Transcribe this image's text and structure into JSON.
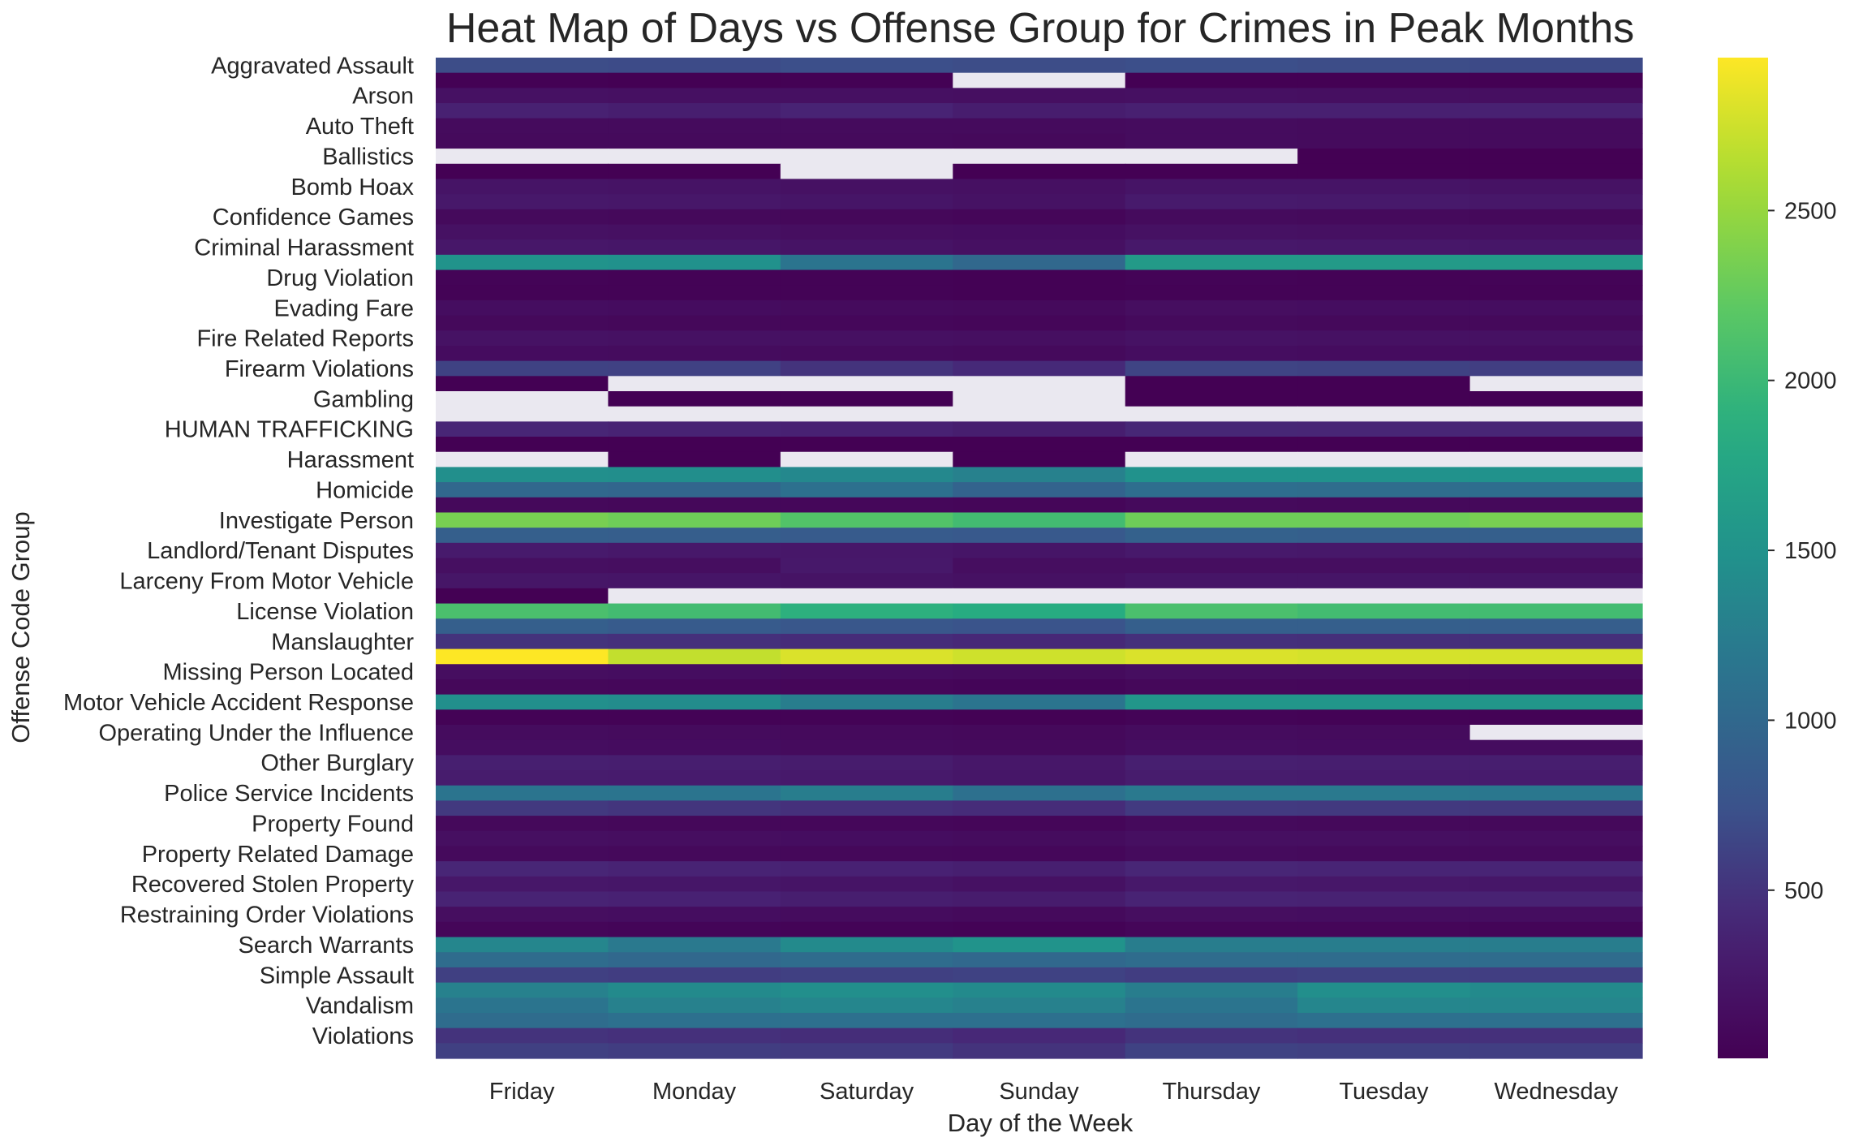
{
  "chart_data": {
    "type": "heatmap",
    "title": "Heat Map of Days vs Offense Group for Crimes in Peak Months",
    "xlabel": "Day of the Week",
    "ylabel": "Offense Code Group",
    "x_categories": [
      "Friday",
      "Monday",
      "Saturday",
      "Sunday",
      "Thursday",
      "Tuesday",
      "Wednesday"
    ],
    "y_labels": [
      "Aggravated Assault",
      "Arson",
      "Auto Theft",
      "Ballistics",
      "Bomb Hoax",
      "Confidence Games",
      "Criminal Harassment",
      "Drug Violation",
      "Evading Fare",
      "Fire Related Reports",
      "Firearm Violations",
      "Gambling",
      "HUMAN TRAFFICKING",
      "Harassment",
      "Homicide",
      "Investigate Person",
      "Landlord/Tenant Disputes",
      "Larceny From Motor Vehicle",
      "License Violation",
      "Manslaughter",
      "Missing Person Located",
      "Motor Vehicle Accident Response",
      "Operating Under the Influence",
      "Other Burglary",
      "Police Service Incidents",
      "Property Found",
      "Property Related Damage",
      "Recovered Stolen Property",
      "Restraining Order Violations",
      "Search Warrants",
      "Simple Assault",
      "Vandalism",
      "Violations"
    ],
    "row_count": 66,
    "values": [
      [
        700,
        690,
        720,
        700,
        720,
        700,
        680
      ],
      [
        15,
        10,
        12,
        null,
        10,
        8,
        9
      ],
      [
        180,
        170,
        170,
        160,
        170,
        160,
        160
      ],
      [
        350,
        320,
        380,
        310,
        340,
        340,
        350
      ],
      [
        110,
        110,
        110,
        110,
        120,
        110,
        110
      ],
      [
        100,
        100,
        100,
        90,
        120,
        110,
        110
      ],
      [
        null,
        null,
        null,
        null,
        null,
        5,
        5
      ],
      [
        10,
        8,
        null,
        5,
        5,
        5,
        6
      ],
      [
        210,
        200,
        180,
        170,
        210,
        210,
        190
      ],
      [
        260,
        250,
        220,
        190,
        280,
        270,
        250
      ],
      [
        100,
        90,
        80,
        60,
        110,
        100,
        90
      ],
      [
        180,
        170,
        150,
        140,
        180,
        170,
        170
      ],
      [
        250,
        240,
        200,
        170,
        260,
        250,
        240
      ],
      [
        1500,
        1480,
        1150,
        1000,
        1600,
        1600,
        1600
      ],
      [
        40,
        30,
        30,
        20,
        40,
        30,
        40
      ],
      [
        30,
        25,
        25,
        20,
        30,
        30,
        30
      ],
      [
        140,
        130,
        110,
        100,
        150,
        140,
        140
      ],
      [
        90,
        80,
        70,
        60,
        100,
        90,
        90
      ],
      [
        190,
        180,
        170,
        160,
        190,
        180,
        180
      ],
      [
        130,
        120,
        110,
        100,
        140,
        130,
        130
      ],
      [
        620,
        610,
        500,
        430,
        630,
        620,
        590
      ],
      [
        10,
        null,
        null,
        null,
        10,
        8,
        null
      ],
      [
        null,
        5,
        5,
        null,
        3,
        4,
        5
      ],
      [
        null,
        null,
        null,
        null,
        null,
        null,
        null
      ],
      [
        400,
        380,
        360,
        320,
        410,
        400,
        400
      ],
      [
        5,
        5,
        4,
        3,
        5,
        5,
        4
      ],
      [
        null,
        5,
        null,
        5,
        null,
        null,
        null
      ],
      [
        1450,
        1440,
        1380,
        1300,
        1490,
        1490,
        1490
      ],
      [
        1000,
        980,
        1100,
        950,
        1080,
        1060,
        1070
      ],
      [
        90,
        80,
        70,
        60,
        100,
        90,
        90
      ],
      [
        2350,
        2300,
        2150,
        2050,
        2300,
        2300,
        2350
      ],
      [
        900,
        880,
        850,
        820,
        920,
        900,
        900
      ],
      [
        280,
        260,
        250,
        220,
        270,
        260,
        260
      ],
      [
        160,
        150,
        260,
        150,
        150,
        150,
        150
      ],
      [
        230,
        220,
        200,
        180,
        220,
        220,
        220
      ],
      [
        5,
        null,
        null,
        null,
        null,
        null,
        null
      ],
      [
        2100,
        2050,
        1900,
        1850,
        2100,
        2050,
        2050
      ],
      [
        900,
        850,
        800,
        760,
        900,
        900,
        880
      ],
      [
        500,
        480,
        450,
        420,
        480,
        470,
        470
      ],
      [
        2950,
        2700,
        2800,
        2750,
        2800,
        2780,
        2780
      ],
      [
        150,
        140,
        130,
        110,
        150,
        150,
        140
      ],
      [
        80,
        70,
        60,
        50,
        80,
        70,
        80
      ],
      [
        1450,
        1420,
        1250,
        1150,
        1550,
        1550,
        1550
      ],
      [
        30,
        30,
        25,
        20,
        35,
        30,
        30
      ],
      [
        120,
        110,
        100,
        90,
        120,
        110,
        null
      ],
      [
        140,
        130,
        110,
        100,
        140,
        130,
        130
      ],
      [
        330,
        320,
        300,
        250,
        330,
        320,
        320
      ],
      [
        300,
        290,
        270,
        240,
        300,
        290,
        290
      ],
      [
        1150,
        1150,
        1250,
        1100,
        1200,
        1200,
        1180
      ],
      [
        550,
        520,
        480,
        450,
        560,
        550,
        540
      ],
      [
        90,
        80,
        70,
        60,
        100,
        90,
        90
      ],
      [
        160,
        150,
        140,
        120,
        160,
        160,
        150
      ],
      [
        100,
        90,
        80,
        70,
        110,
        100,
        100
      ],
      [
        400,
        380,
        360,
        330,
        400,
        390,
        390
      ],
      [
        250,
        240,
        210,
        180,
        260,
        250,
        240
      ],
      [
        380,
        360,
        320,
        300,
        380,
        370,
        370
      ],
      [
        150,
        140,
        120,
        100,
        150,
        140,
        140
      ],
      [
        60,
        50,
        40,
        30,
        60,
        60,
        50
      ],
      [
        1350,
        1200,
        1400,
        1500,
        1250,
        1250,
        1250
      ],
      [
        1050,
        1000,
        1050,
        1000,
        1050,
        1050,
        1050
      ],
      [
        600,
        580,
        600,
        620,
        580,
        600,
        590
      ],
      [
        1300,
        1400,
        1450,
        1400,
        1250,
        1450,
        1400
      ],
      [
        1150,
        1300,
        1350,
        1300,
        1150,
        1350,
        1350
      ],
      [
        1050,
        1100,
        1100,
        1100,
        1050,
        1100,
        1100
      ],
      [
        500,
        480,
        460,
        420,
        500,
        480,
        480
      ],
      [
        600,
        580,
        560,
        500,
        620,
        600,
        590
      ]
    ],
    "colorbar": {
      "min": 5,
      "max": 2950,
      "ticks": [
        500,
        1000,
        1500,
        2000,
        2500
      ],
      "colormap": "viridis"
    },
    "missing_color": "#eae8f0",
    "grid": false
  }
}
